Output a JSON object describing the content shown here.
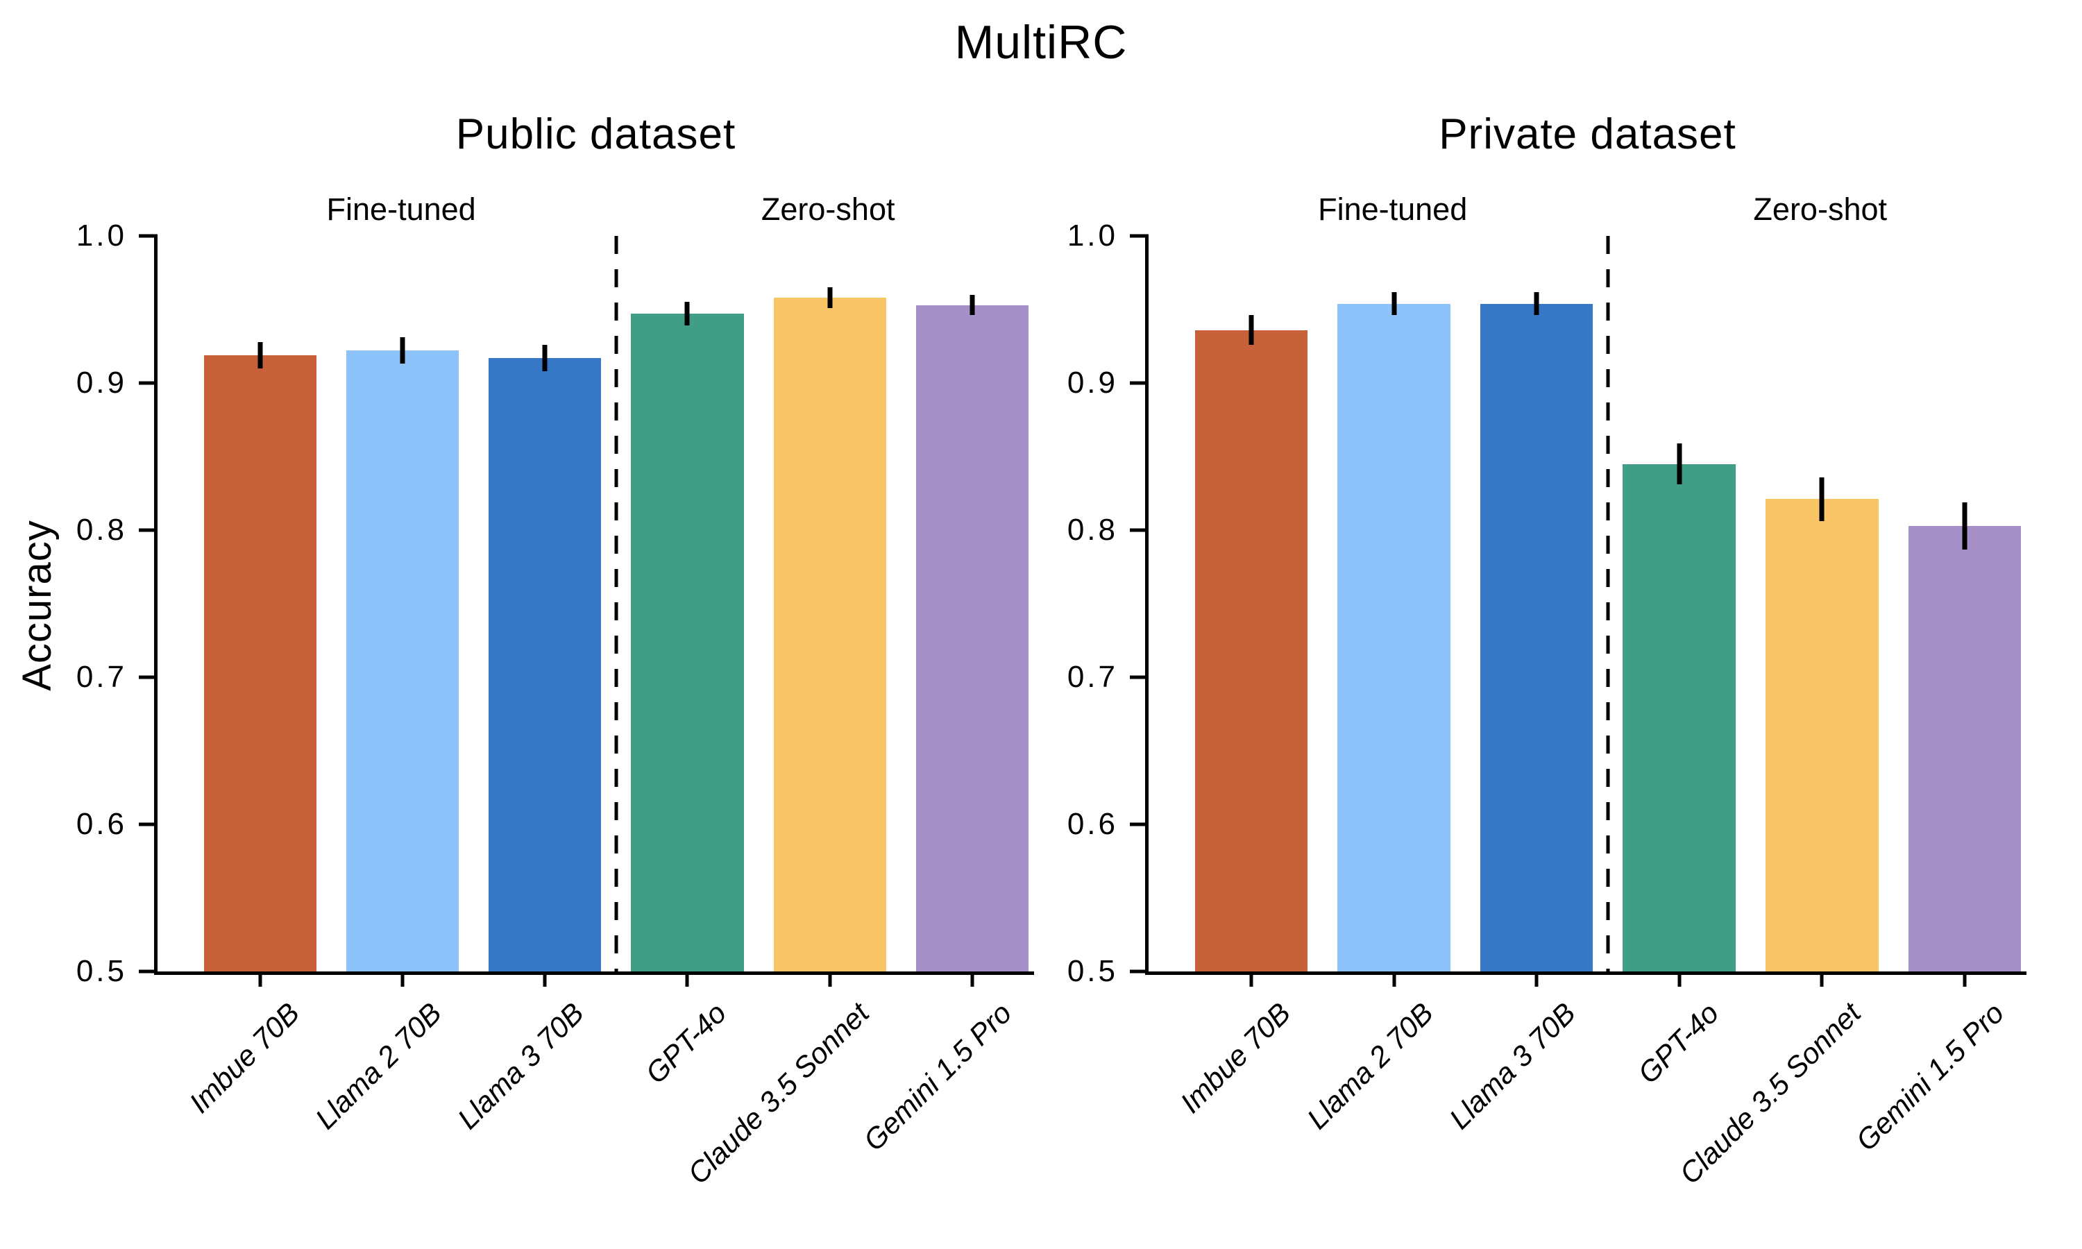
{
  "suptitle": "MultiRC",
  "ylabel": "Accuracy",
  "colors": {
    "bar_palette": [
      "#c6613a",
      "#8dc3fa",
      "#3778c6",
      "#3f9e85",
      "#fac567",
      "#a591c8"
    ],
    "axis": "#000000",
    "error_bar": "#000000",
    "background": "#ffffff"
  },
  "chart_data": [
    {
      "type": "bar",
      "title": "Public dataset",
      "group_labels": [
        "Fine-tuned",
        "Zero-shot"
      ],
      "categories": [
        "Imbue 70B",
        "Llama 2 70B",
        "Llama 3 70B",
        "GPT-4o",
        "Claude 3.5 Sonnet",
        "Gemini 1.5 Pro"
      ],
      "values": [
        0.919,
        0.922,
        0.917,
        0.947,
        0.958,
        0.953
      ],
      "errors": [
        0.009,
        0.009,
        0.009,
        0.008,
        0.007,
        0.007
      ],
      "yticks": [
        "1.0",
        "0.9",
        "0.8",
        "0.7",
        "0.6",
        "0.5"
      ],
      "ylim": [
        0.5,
        1.0
      ],
      "grid": false,
      "legend": false,
      "divider_after": 3
    },
    {
      "type": "bar",
      "title": "Private dataset",
      "group_labels": [
        "Fine-tuned",
        "Zero-shot"
      ],
      "categories": [
        "Imbue 70B",
        "Llama 2 70B",
        "Llama 3 70B",
        "GPT-4o",
        "Claude 3.5 Sonnet",
        "Gemini 1.5 Pro"
      ],
      "values": [
        0.936,
        0.954,
        0.954,
        0.845,
        0.821,
        0.803
      ],
      "errors": [
        0.01,
        0.008,
        0.008,
        0.014,
        0.015,
        0.016
      ],
      "yticks": [
        "1.0",
        "0.9",
        "0.8",
        "0.7",
        "0.6",
        "0.5"
      ],
      "ylim": [
        0.5,
        1.0
      ],
      "grid": false,
      "legend": false,
      "divider_after": 3
    }
  ]
}
